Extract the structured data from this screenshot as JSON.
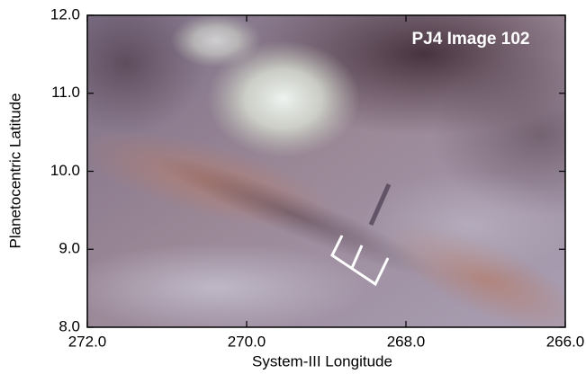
{
  "chart_data": {
    "type": "image",
    "annotation": "PJ4 Image 102",
    "x_label": "System-III Longitude",
    "y_label": "Planetocentric Latitude",
    "xlim": [
      272,
      266
    ],
    "ylim": [
      8,
      12
    ],
    "xticks": [
      {
        "value": 272,
        "label": "272.0"
      },
      {
        "value": 270,
        "label": "270.0"
      },
      {
        "value": 268,
        "label": "268.0"
      },
      {
        "value": 266,
        "label": "266.0"
      }
    ],
    "yticks": [
      {
        "value": 8,
        "label": "8.0"
      },
      {
        "value": 9,
        "label": "9.0"
      },
      {
        "value": 10,
        "label": "10.0"
      },
      {
        "value": 11,
        "label": "11.0"
      },
      {
        "value": 12,
        "label": "12.0"
      }
    ]
  }
}
